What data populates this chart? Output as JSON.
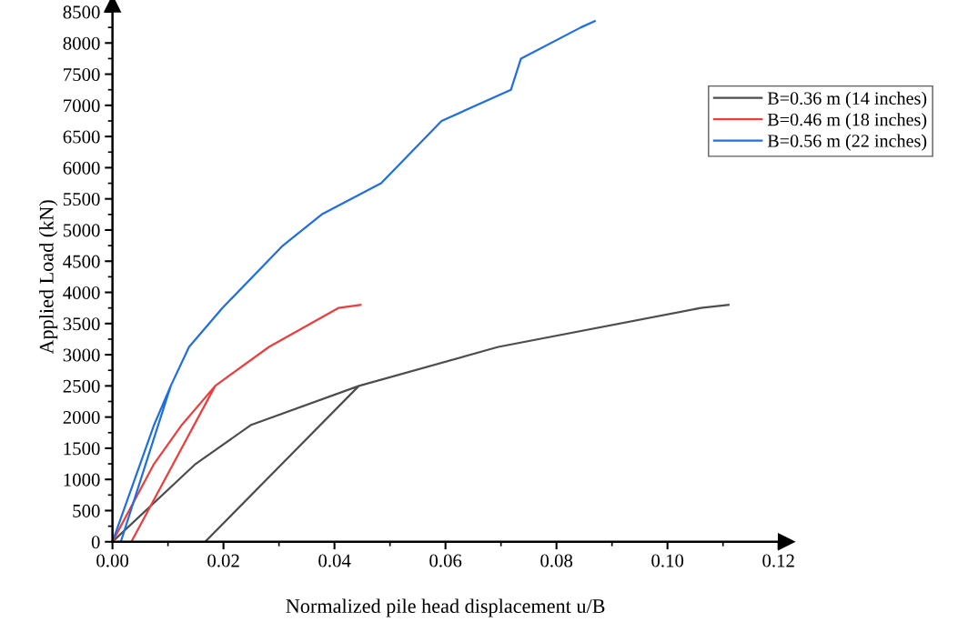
{
  "chart_data": {
    "type": "line",
    "xlabel": "Normalized pile head displacement u/B",
    "ylabel": "Applied Load (kN)",
    "xlim": [
      0,
      0.12
    ],
    "ylim": [
      0,
      8500
    ],
    "xticks": [
      {
        "value": 0,
        "label": "0.00"
      },
      {
        "value": 0.02,
        "label": "0.02"
      },
      {
        "value": 0.04,
        "label": "0.04"
      },
      {
        "value": 0.06,
        "label": "0.06"
      },
      {
        "value": 0.08,
        "label": "0.08"
      },
      {
        "value": 0.1,
        "label": "0.10"
      },
      {
        "value": 0.12,
        "label": "0.12"
      }
    ],
    "yticks": [
      0,
      500,
      1000,
      1500,
      2000,
      2500,
      3000,
      3500,
      4000,
      4500,
      5000,
      5500,
      6000,
      6500,
      7000,
      7500,
      8000,
      8500
    ],
    "grid": false,
    "legend": "top right",
    "marker": "none",
    "line_style": "solid",
    "series": [
      {
        "name": "B=0.36 m (14 inches)",
        "color": "#4d4d4d",
        "x": [
          0,
          0.015,
          0.025,
          0.0444,
          0.0167,
          0.0444,
          0.0695,
          0.106,
          0.111
        ],
        "values": [
          0,
          1250,
          1875,
          2500,
          0,
          2500,
          3125,
          3750,
          3800
        ]
      },
      {
        "name": "B=0.46 m (18 inches)",
        "color": "#f03c3c",
        "x": [
          0,
          0.0075,
          0.0125,
          0.0185,
          0.0034,
          0.0185,
          0.0282,
          0.0407,
          0.0447
        ],
        "values": [
          0,
          1250,
          1875,
          2500,
          0,
          2500,
          3125,
          3750,
          3800
        ]
      },
      {
        "name": "B=0.56 m (22 inches)",
        "color": "#1f6fe0",
        "x": [
          0,
          0.0075,
          0.0105,
          0.0015,
          0.0105,
          0.0138,
          0.0198,
          0.0307,
          0.0377,
          0.0484,
          0.0593,
          0.0718,
          0.0736,
          0.0844,
          0.0869
        ],
        "values": [
          0,
          1875,
          2500,
          0,
          2500,
          3125,
          3750,
          4750,
          5250,
          5750,
          6750,
          7250,
          7750,
          8250,
          8350
        ]
      }
    ]
  }
}
